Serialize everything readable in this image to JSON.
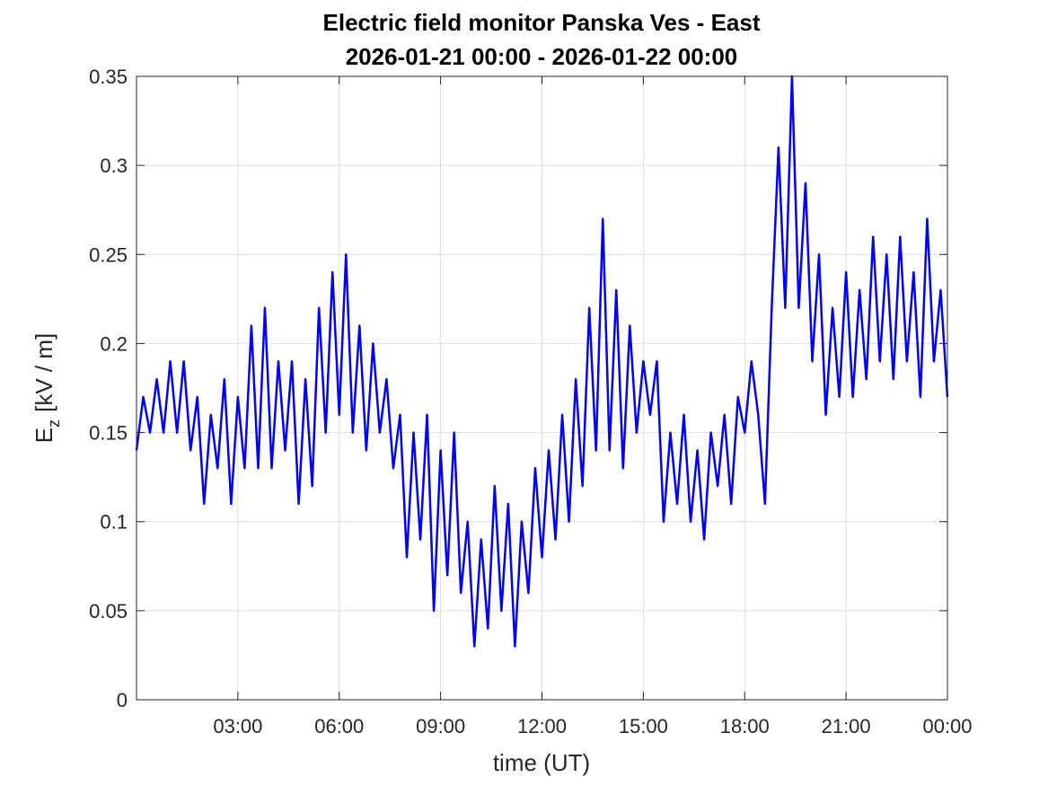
{
  "chart_data": {
    "type": "line",
    "title": [
      "Electric field monitor Panska Ves - East",
      "2026-01-21 00:00 - 2026-01-22 00:00"
    ],
    "xlabel": "time (UT)",
    "ylabel": {
      "main": "E",
      "sub": "z",
      "unit": "[kV / m]"
    },
    "color": "#0000ff",
    "grid": true,
    "xlim": [
      0,
      24
    ],
    "xticks": [
      {
        "value": 3,
        "label": "03:00"
      },
      {
        "value": 6,
        "label": "06:00"
      },
      {
        "value": 9,
        "label": "09:00"
      },
      {
        "value": 12,
        "label": "12:00"
      },
      {
        "value": 15,
        "label": "15:00"
      },
      {
        "value": 18,
        "label": "18:00"
      },
      {
        "value": 21,
        "label": "21:00"
      },
      {
        "value": 24,
        "label": "00:00"
      }
    ],
    "ylim": [
      0,
      0.35
    ],
    "yticks": [
      0,
      0.05,
      0.1,
      0.15,
      0.2,
      0.25,
      0.3,
      0.35
    ],
    "x": [
      0,
      0.2,
      0.4,
      0.6,
      0.8,
      1,
      1.2,
      1.4,
      1.6,
      1.8,
      2,
      2.2,
      2.4,
      2.6,
      2.8,
      3,
      3.2,
      3.4,
      3.6,
      3.8,
      4,
      4.2,
      4.4,
      4.6,
      4.8,
      5,
      5.2,
      5.4,
      5.6,
      5.8,
      6,
      6.2,
      6.4,
      6.6,
      6.8,
      7,
      7.2,
      7.4,
      7.6,
      7.8,
      8,
      8.2,
      8.4,
      8.6,
      8.8,
      9,
      9.2,
      9.4,
      9.6,
      9.8,
      10,
      10.2,
      10.4,
      10.6,
      10.8,
      11,
      11.2,
      11.4,
      11.6,
      11.8,
      12,
      12.2,
      12.4,
      12.6,
      12.8,
      13,
      13.2,
      13.4,
      13.6,
      13.8,
      14,
      14.2,
      14.4,
      14.6,
      14.8,
      15,
      15.2,
      15.4,
      15.6,
      15.8,
      16,
      16.2,
      16.4,
      16.6,
      16.8,
      17,
      17.2,
      17.4,
      17.6,
      17.8,
      18,
      18.2,
      18.4,
      18.6,
      18.8,
      19,
      19.2,
      19.4,
      19.6,
      19.8,
      20,
      20.2,
      20.4,
      20.6,
      20.8,
      21,
      21.2,
      21.4,
      21.6,
      21.8,
      22,
      22.2,
      22.4,
      22.6,
      22.8,
      23,
      23.2,
      23.4,
      23.6,
      23.8,
      24
    ],
    "values": [
      0.14,
      0.17,
      0.15,
      0.18,
      0.15,
      0.19,
      0.15,
      0.19,
      0.14,
      0.17,
      0.11,
      0.16,
      0.13,
      0.18,
      0.11,
      0.17,
      0.13,
      0.21,
      0.13,
      0.22,
      0.13,
      0.19,
      0.14,
      0.19,
      0.11,
      0.18,
      0.12,
      0.22,
      0.15,
      0.24,
      0.16,
      0.25,
      0.15,
      0.21,
      0.14,
      0.2,
      0.15,
      0.18,
      0.13,
      0.16,
      0.08,
      0.15,
      0.09,
      0.16,
      0.05,
      0.14,
      0.07,
      0.15,
      0.06,
      0.1,
      0.03,
      0.09,
      0.04,
      0.12,
      0.05,
      0.11,
      0.03,
      0.1,
      0.06,
      0.13,
      0.08,
      0.14,
      0.09,
      0.16,
      0.1,
      0.18,
      0.12,
      0.22,
      0.14,
      0.27,
      0.14,
      0.23,
      0.13,
      0.21,
      0.15,
      0.19,
      0.16,
      0.19,
      0.1,
      0.15,
      0.11,
      0.16,
      0.1,
      0.14,
      0.09,
      0.15,
      0.12,
      0.16,
      0.11,
      0.17,
      0.15,
      0.19,
      0.16,
      0.11,
      0.22,
      0.31,
      0.22,
      0.35,
      0.22,
      0.29,
      0.19,
      0.25,
      0.16,
      0.22,
      0.17,
      0.24,
      0.17,
      0.23,
      0.18,
      0.26,
      0.19,
      0.25,
      0.18,
      0.26,
      0.19,
      0.24,
      0.17,
      0.27,
      0.19,
      0.23,
      0.17
    ]
  }
}
